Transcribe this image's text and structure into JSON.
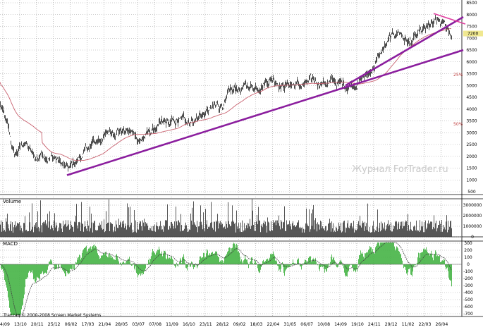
{
  "watermark": "Журнал ForTrader.ru",
  "copyright": "Tranzaq © 2000-2008 Screen Market Systems",
  "colors": {
    "price": "#222222",
    "ma": "#c8606e",
    "trendline": "#8b1e9e",
    "volume": "#444444",
    "macd_hist": "#46b446",
    "signal": "#404040",
    "grid": "#9a9a9a",
    "price_marker": "#f0e890",
    "pct_text": "#c04040",
    "pink_line": "#e040a0"
  },
  "chart_data": [
    {
      "type": "line",
      "panel": "price",
      "series": [],
      "y_ticks": [
        "8500",
        "8000",
        "7500",
        "7000",
        "6500",
        "6000",
        "5500",
        "5000",
        "4500",
        "4000",
        "3500",
        "3000",
        "2500",
        "2000",
        "1500",
        "1000",
        "500"
      ],
      "price_marker": "7200",
      "pct_labels": [
        "25%",
        "50%"
      ],
      "ylim": [
        500,
        8500
      ],
      "grid": true
    },
    {
      "type": "bar",
      "panel": "volume",
      "title": "Volume",
      "y_ticks": [
        "3000000",
        "2000000",
        "1000000",
        "0"
      ],
      "ylim": [
        0,
        3600000
      ],
      "grid": true
    },
    {
      "type": "bar",
      "panel": "macd",
      "title": "MACD",
      "y_ticks": [
        "300",
        "200",
        "100",
        "0",
        "-100",
        "-200",
        "-300",
        "-400",
        "-500",
        "-600",
        "-700"
      ],
      "ylim": [
        -740,
        330
      ],
      "grid": true
    }
  ],
  "x_ticks": [
    "04/09",
    "13/10",
    "20/11",
    "25/12",
    "06/02",
    "17/03",
    "21/04",
    "28/05",
    "03/07",
    "07/08",
    "11/09",
    "16/10",
    "23/11",
    "28/12",
    "09/02",
    "18/03",
    "22/04",
    "31/05",
    "06/07",
    "10/08",
    "14/09",
    "19/10",
    "24/11",
    "29/12",
    "11/02",
    "22/03",
    "26/04"
  ]
}
